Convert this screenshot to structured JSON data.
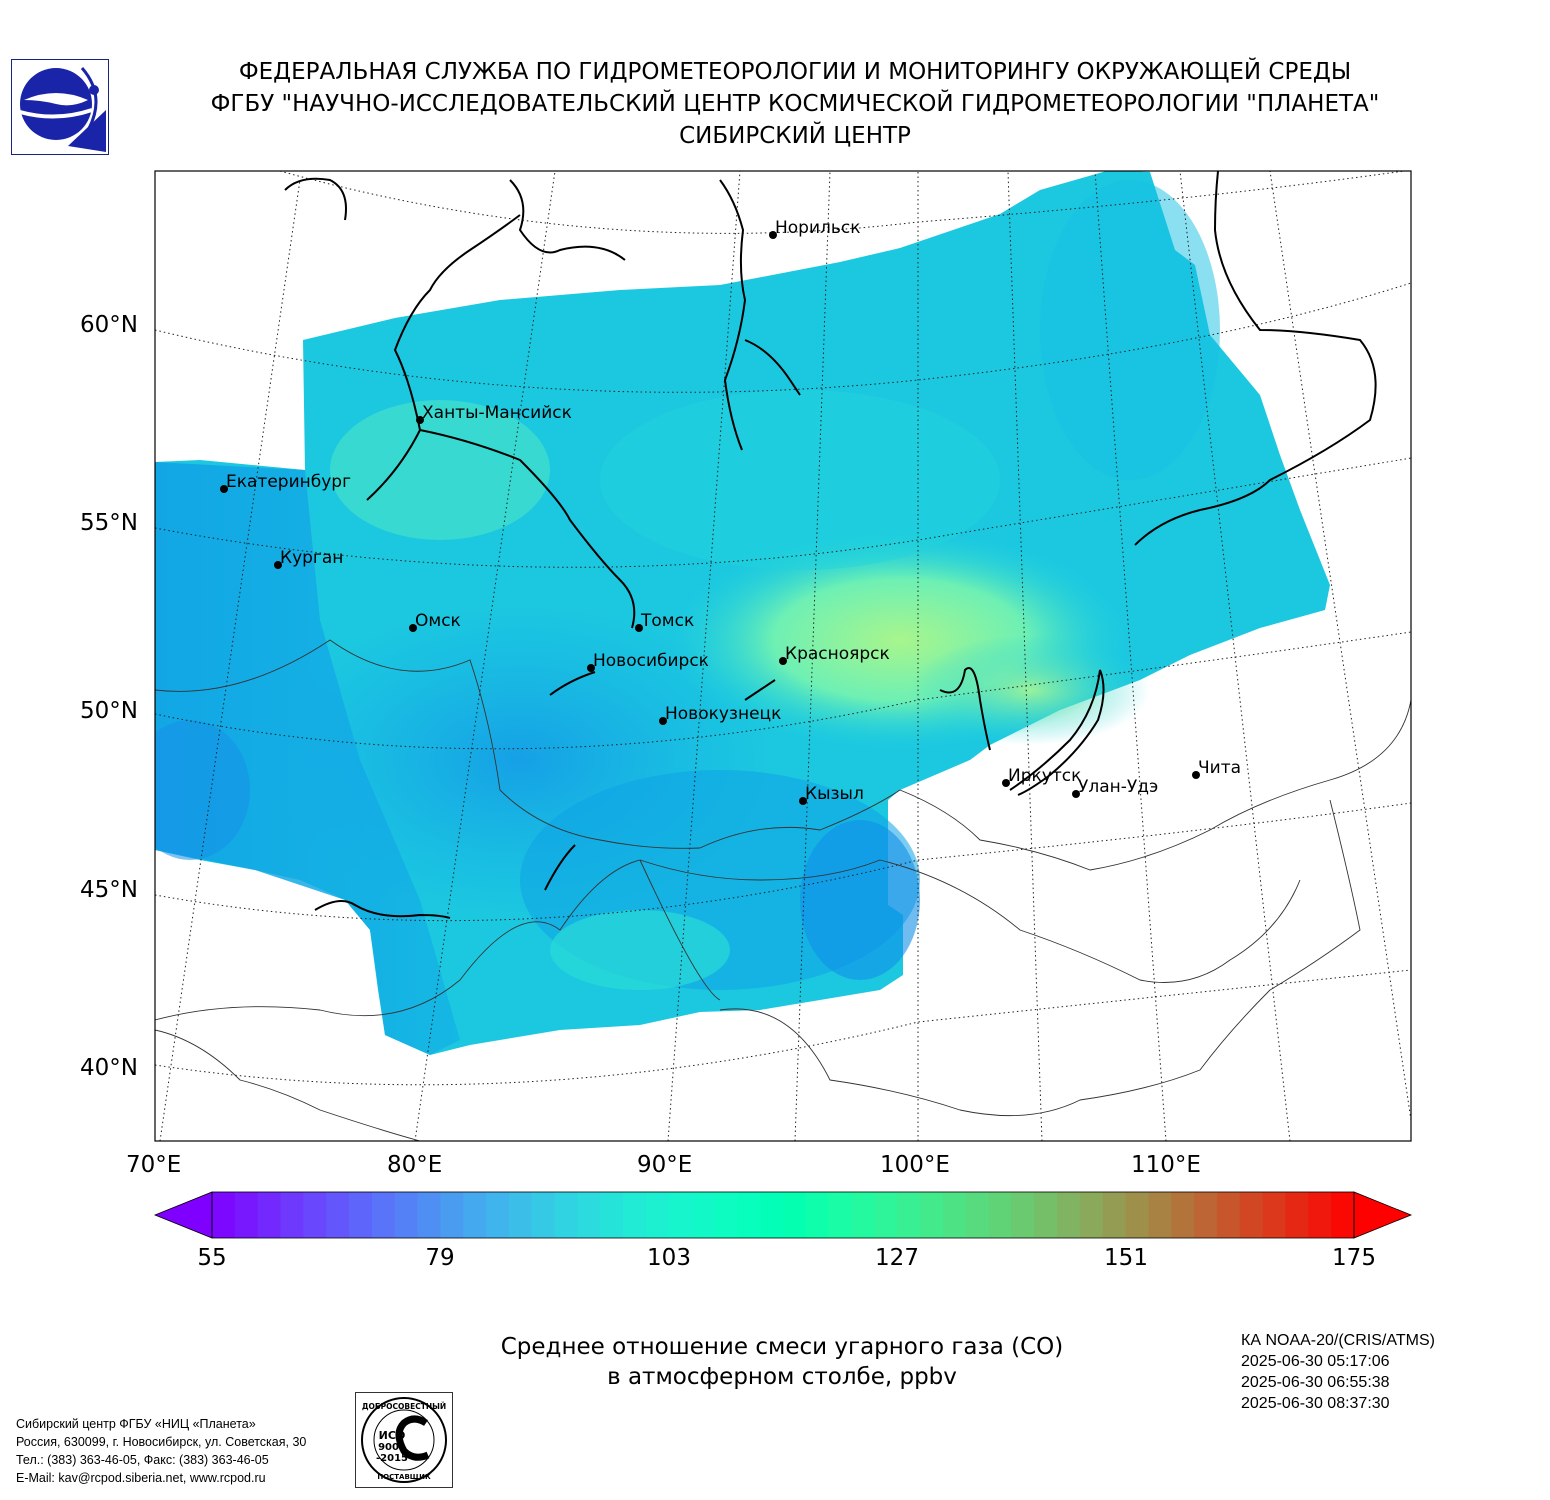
{
  "header": {
    "line1": "ФЕДЕРАЛЬНАЯ СЛУЖБА ПО ГИДРОМЕТЕОРОЛОГИИ И МОНИТОРИНГУ ОКРУЖАЮЩЕЙ СРЕДЫ",
    "line2": "ФГБУ \"НАУЧНО-ИССЛЕДОВАТЕЛЬСКИЙ ЦЕНТР КОСМИЧЕСКОЙ ГИДРОМЕТЕОРОЛОГИИ \"ПЛАНЕТА\"",
    "line3": "СИБИРСКИЙ ЦЕНТР"
  },
  "map": {
    "lat_labels": [
      "60°N",
      "55°N",
      "50°N",
      "45°N",
      "40°N"
    ],
    "lon_labels": [
      "70°E",
      "80°E",
      "90°E",
      "100°E",
      "110°E"
    ],
    "cities": [
      {
        "name": "Норильск"
      },
      {
        "name": "Ханты-Мансийск"
      },
      {
        "name": "Екатеринбург"
      },
      {
        "name": "Курган"
      },
      {
        "name": "Омск"
      },
      {
        "name": "Томск"
      },
      {
        "name": "Новосибирск"
      },
      {
        "name": "Красноярск"
      },
      {
        "name": "Новокузнецк"
      },
      {
        "name": "Кызыл"
      },
      {
        "name": "Иркутск"
      },
      {
        "name": "Улан-Удэ"
      },
      {
        "name": "Чита"
      }
    ],
    "field_colors": {
      "low": "#12a9e6",
      "mid": "#1fd1dd",
      "high": "#a5f58a"
    }
  },
  "colorbar": {
    "min": 55,
    "max": 175,
    "ticks": [
      "55",
      "79",
      "103",
      "127",
      "151",
      "175"
    ],
    "extend": "both",
    "colormap": "rainbow"
  },
  "caption": {
    "line1": "Среднее отношение смеси угарного газа (CO)",
    "line2": "в атмосферном столбе, ppbv"
  },
  "satellite": {
    "name": "КА NOAA-20/(CRIS/ATMS)",
    "times": [
      "2025-06-30 05:17:06",
      "2025-06-30 06:55:38",
      "2025-06-30 08:37:30"
    ]
  },
  "contacts": {
    "line1": "Сибирский центр ФГБУ «НИЦ «Планета»",
    "line2": "Россия, 630099, г. Новосибирск, ул. Советская, 30",
    "line3": "Тел.: (383) 363-46-05, Факс: (383) 363-46-05",
    "line4": "E-Mail: kav@rcpod.siberia.net, www.rcpod.ru"
  },
  "iso_stamp": {
    "top": "ДОБРОСОВЕСТНЫЙ",
    "mid1": "ИСО",
    "mid2": "9001",
    "mid3": "-2015",
    "bottom": "ПОСТАВЩИК"
  }
}
